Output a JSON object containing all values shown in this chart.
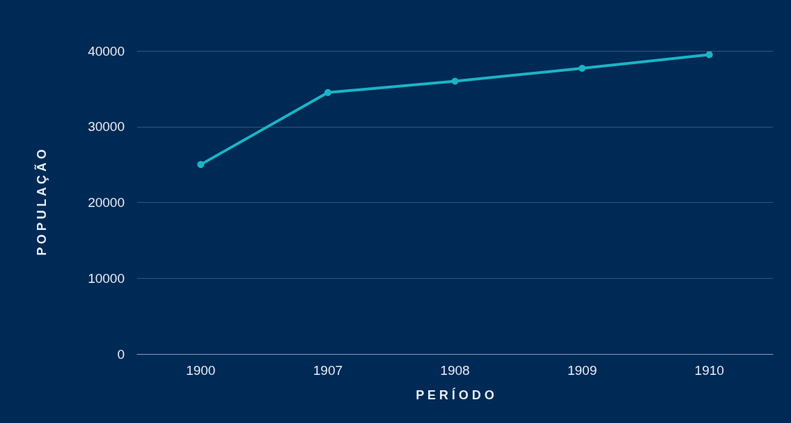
{
  "chart_data": {
    "type": "line",
    "xlabel": "P E R Í O D O",
    "ylabel": "P O P U L A Ç Ã O",
    "categories": [
      "1900",
      "1907",
      "1908",
      "1909",
      "1910"
    ],
    "series": [
      {
        "color": "#1bb4c4",
        "values": [
          25000,
          34500,
          36000,
          37700,
          39500
        ]
      }
    ],
    "ylim": [
      0,
      40000
    ],
    "yticks": [
      0,
      10000,
      20000,
      30000,
      40000
    ],
    "grid": "y",
    "marker": "circle",
    "line_style": "solid"
  }
}
